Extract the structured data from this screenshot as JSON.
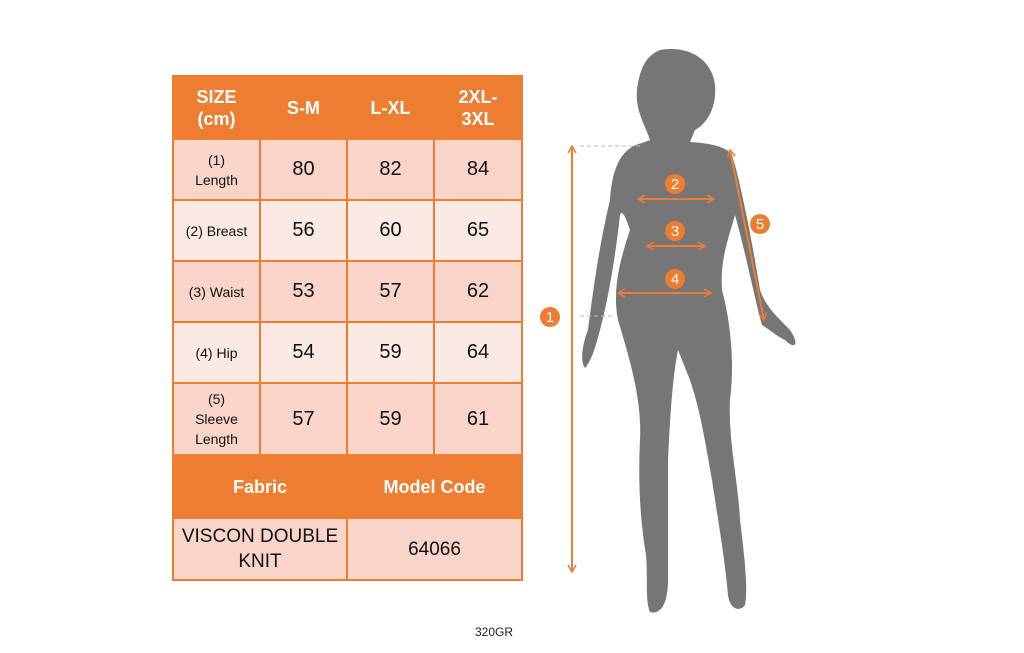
{
  "table": {
    "headers": [
      "SIZE\n(cm)",
      "S-M",
      "L-XL",
      "2XL-\n3XL"
    ],
    "rows": [
      {
        "label": "(1)\nLength",
        "values": [
          "80",
          "82",
          "84"
        ]
      },
      {
        "label": "(2) Breast",
        "values": [
          "56",
          "60",
          "65"
        ]
      },
      {
        "label": "(3) Waist",
        "values": [
          "53",
          "57",
          "62"
        ]
      },
      {
        "label": "(4) Hip",
        "values": [
          "54",
          "59",
          "64"
        ]
      },
      {
        "label": "(5)\nSleeve\nLength",
        "values": [
          "57",
          "59",
          "61"
        ]
      }
    ],
    "fabric_header": "Fabric",
    "model_code_header": "Model Code",
    "fabric": "VISCON DOUBLE KNIT",
    "model_code": "64066"
  },
  "figure": {
    "markers": [
      "1",
      "2",
      "3",
      "4",
      "5"
    ],
    "accent": "#ED7D31",
    "silhouette": "#767676"
  },
  "footer": "320GR"
}
